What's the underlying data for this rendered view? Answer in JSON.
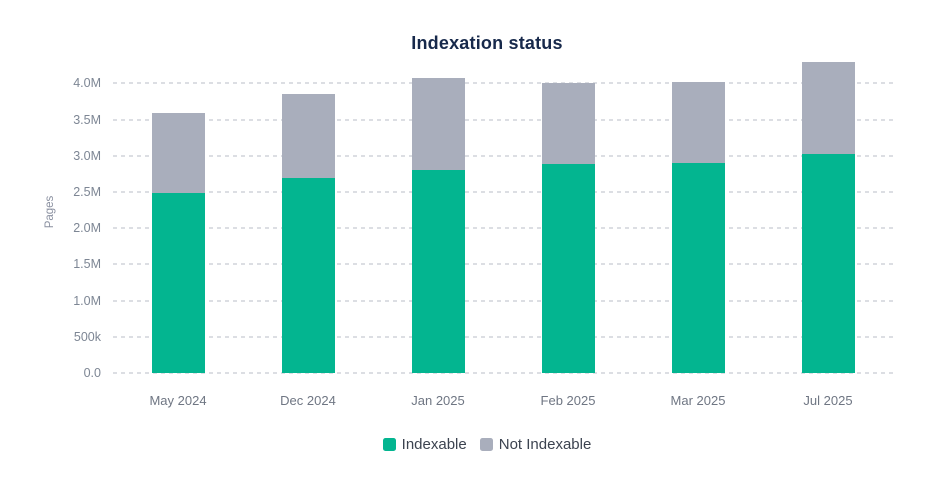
{
  "chart": {
    "title": "Indexation status",
    "y_axis_title": "Pages"
  },
  "colors": {
    "indexable": "#03b590",
    "not_indexable": "#a9aebc",
    "title_text": "#17294b",
    "y_tick_text": "#7d8694",
    "x_tick_text": "#6f7683",
    "axis_title_text": "#8a90a0",
    "legend_text": "#3c4350",
    "gridline": "#dcdee3",
    "background": "#ffffff"
  },
  "chart_data": {
    "type": "bar",
    "stacked": true,
    "title": "Indexation status",
    "xlabel": "",
    "ylabel": "Pages",
    "categories": [
      "May 2024",
      "Dec 2024",
      "Jan 2025",
      "Feb 2025",
      "Mar 2025",
      "Jul 2025"
    ],
    "series": [
      {
        "name": "Indexable",
        "color": "#03b590",
        "values_millions": [
          2.48,
          2.69,
          2.81,
          2.88,
          2.9,
          3.03
        ]
      },
      {
        "name": "Not Indexable",
        "color": "#a9aebc",
        "values_millions": [
          1.11,
          1.17,
          1.26,
          1.12,
          1.12,
          1.26
        ]
      }
    ],
    "totals_millions": [
      3.59,
      3.86,
      4.07,
      4.0,
      4.02,
      4.29
    ],
    "ylim": [
      0,
      4.35
    ],
    "yticks": [
      {
        "value": 0,
        "label": "0.0"
      },
      {
        "value": 0.5,
        "label": "500k"
      },
      {
        "value": 1,
        "label": "1.0M"
      },
      {
        "value": 1.5,
        "label": "1.5M"
      },
      {
        "value": 2,
        "label": "2.0M"
      },
      {
        "value": 2.5,
        "label": "2.5M"
      },
      {
        "value": 3,
        "label": "3.0M"
      },
      {
        "value": 3.5,
        "label": "3.5M"
      },
      {
        "value": 4,
        "label": "4.0M"
      }
    ],
    "grid": "horizontal-dashed",
    "legend_position": "bottom"
  }
}
